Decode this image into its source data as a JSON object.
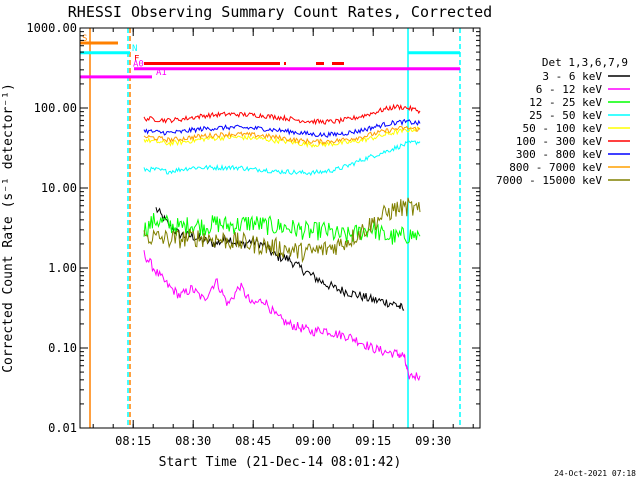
{
  "chart_data": {
    "type": "line",
    "title": "RHESSI Observing Summary Count Rates, Corrected",
    "xlabel": "Start Time (21-Dec-14 08:01:42)",
    "ylabel": "Corrected Count Rate (s⁻¹ detector⁻¹)",
    "y_scale": "log",
    "xlim_minutes": [
      0,
      100
    ],
    "ylim": [
      0.01,
      1000
    ],
    "x_ticks": [
      {
        "label": "08:15",
        "min": 13.3
      },
      {
        "label": "08:30",
        "min": 28.3
      },
      {
        "label": "08:45",
        "min": 43.3
      },
      {
        "label": "09:00",
        "min": 58.3
      },
      {
        "label": "09:15",
        "min": 73.3
      },
      {
        "label": "09:30",
        "min": 88.3
      }
    ],
    "y_ticks": [
      {
        "label": "1000.00",
        "v": 1000
      },
      {
        "label": "100.00",
        "v": 100
      },
      {
        "label": "10.00",
        "v": 10
      },
      {
        "label": "1.00",
        "v": 1
      },
      {
        "label": "0.10",
        "v": 0.1
      },
      {
        "label": "0.01",
        "v": 0.01
      }
    ],
    "legend_title": "Det 1,3,6,7,9",
    "legend_placement": "right",
    "series": [
      {
        "name": "3 - 6 keV",
        "color": "#000000",
        "x": [
          19,
          22,
          25,
          28,
          31,
          34,
          37,
          40,
          43,
          46,
          49,
          52,
          55,
          58,
          61,
          64,
          67,
          70,
          73,
          76,
          79,
          81
        ],
        "y": [
          5.5,
          3.5,
          2.6,
          2.5,
          2.2,
          2.0,
          2.4,
          1.9,
          2.2,
          1.9,
          1.4,
          1.3,
          1.0,
          0.8,
          0.65,
          0.55,
          0.5,
          0.45,
          0.4,
          0.38,
          0.35,
          0.3
        ]
      },
      {
        "name": "6 - 12 keV",
        "color": "#ff00ff",
        "x": [
          16,
          19,
          22,
          25,
          28,
          31,
          34,
          37,
          40,
          43,
          46,
          49,
          52,
          55,
          58,
          61,
          64,
          67,
          70,
          73,
          76,
          79,
          81,
          82,
          85
        ],
        "y": [
          1.5,
          0.9,
          0.6,
          0.45,
          0.55,
          0.4,
          0.7,
          0.35,
          0.6,
          0.35,
          0.4,
          0.25,
          0.2,
          0.18,
          0.16,
          0.17,
          0.15,
          0.14,
          0.12,
          0.1,
          0.09,
          0.085,
          0.08,
          0.045,
          0.045
        ]
      },
      {
        "name": "12 - 25 keV",
        "color": "#00ff00",
        "x": [
          16,
          19,
          22,
          25,
          28,
          31,
          34,
          37,
          40,
          43,
          46,
          49,
          52,
          55,
          58,
          61,
          64,
          67,
          70,
          73,
          76,
          79,
          82,
          85
        ],
        "y": [
          3.0,
          4.0,
          3.5,
          3.2,
          3.5,
          3.3,
          3.6,
          3.4,
          3.5,
          3.7,
          3.4,
          3.3,
          3.2,
          3.0,
          2.8,
          3.0,
          2.6,
          2.5,
          2.8,
          3.2,
          2.5,
          2.4,
          2.6,
          2.5
        ]
      },
      {
        "name": "25 - 50 keV",
        "color": "#00ffff",
        "x": [
          16,
          19,
          22,
          25,
          28,
          31,
          34,
          37,
          40,
          43,
          46,
          49,
          52,
          55,
          58,
          61,
          64,
          67,
          70,
          73,
          76,
          79,
          82,
          85
        ],
        "y": [
          17,
          17,
          16,
          17,
          18,
          18,
          18,
          18,
          18,
          17,
          17,
          16,
          16,
          15.5,
          15.5,
          16,
          17,
          19,
          22,
          25,
          28,
          32,
          36,
          38
        ]
      },
      {
        "name": "50 - 100 keV",
        "color": "#ffff00",
        "x": [
          16,
          19,
          22,
          25,
          28,
          31,
          34,
          37,
          40,
          43,
          46,
          49,
          52,
          55,
          58,
          61,
          64,
          67,
          70,
          73,
          76,
          79,
          82,
          85
        ],
        "y": [
          40,
          38,
          36,
          37,
          39,
          41,
          42,
          43,
          43,
          42,
          41,
          39,
          38,
          36,
          35,
          35,
          36,
          37,
          39,
          42,
          46,
          50,
          53,
          55
        ]
      },
      {
        "name": "100 - 300 keV",
        "color": "#ff0000",
        "x": [
          16,
          19,
          22,
          25,
          28,
          31,
          34,
          37,
          40,
          43,
          46,
          49,
          52,
          55,
          58,
          61,
          64,
          67,
          70,
          73,
          76,
          79,
          82,
          85
        ],
        "y": [
          74,
          72,
          70,
          72,
          76,
          80,
          82,
          84,
          83,
          82,
          80,
          77,
          74,
          70,
          68,
          67,
          68,
          72,
          78,
          86,
          96,
          104,
          100,
          92
        ]
      },
      {
        "name": "300 - 800 keV",
        "color": "#0000ff",
        "x": [
          16,
          19,
          22,
          25,
          28,
          31,
          34,
          37,
          40,
          43,
          46,
          49,
          52,
          55,
          58,
          61,
          64,
          67,
          70,
          73,
          76,
          79,
          82,
          85
        ],
        "y": [
          52,
          50,
          49,
          50,
          53,
          55,
          56,
          57,
          57,
          56,
          55,
          53,
          51,
          49,
          47,
          46,
          47,
          49,
          52,
          57,
          62,
          66,
          67,
          64
        ]
      },
      {
        "name": "800 - 7000 keV",
        "color": "#ffa000",
        "x": [
          16,
          19,
          22,
          25,
          28,
          31,
          34,
          37,
          40,
          43,
          46,
          49,
          52,
          55,
          58,
          61,
          64,
          67,
          70,
          73,
          76,
          79,
          82,
          85
        ],
        "y": [
          44,
          42,
          40,
          41,
          43,
          45,
          46,
          47,
          47,
          46,
          45,
          43,
          41,
          39,
          38,
          38,
          39,
          41,
          43,
          47,
          51,
          55,
          56,
          54
        ]
      },
      {
        "name": "7000 - 15000 keV",
        "color": "#808000",
        "x": [
          16,
          19,
          22,
          25,
          28,
          31,
          34,
          37,
          40,
          43,
          46,
          49,
          52,
          55,
          58,
          61,
          64,
          67,
          70,
          73,
          76,
          79,
          82,
          85
        ],
        "y": [
          2.5,
          2.4,
          2.3,
          2.3,
          2.4,
          2.4,
          2.3,
          2.2,
          2.1,
          2.0,
          1.9,
          1.8,
          1.7,
          1.6,
          1.6,
          1.7,
          1.9,
          2.2,
          2.8,
          3.6,
          4.6,
          5.5,
          5.8,
          5.0
        ]
      }
    ],
    "annotations": [
      {
        "text": "S",
        "color": "#ff8000",
        "x_min": 0,
        "x_max": 9.5,
        "y": 650
      },
      {
        "text": "N",
        "color": "#00ffff",
        "x_min": 0,
        "x_max": 12.5,
        "y": 490,
        "x2_min": 82,
        "x2_max": 95
      },
      {
        "text": "F",
        "color": "#ff0000",
        "x_min": 16,
        "x_max": 50,
        "y": 360,
        "extra": [
          [
            51,
            51.5
          ],
          [
            59,
            61
          ],
          [
            63,
            66
          ]
        ]
      },
      {
        "text": "A0",
        "color": "#ff00ff",
        "x_min": 13.5,
        "x_max": 95,
        "y": 310
      },
      {
        "text": "A1",
        "color": "#ff00ff",
        "x_min": 0,
        "x_max": 18,
        "y": 245
      }
    ],
    "vertical_lines": [
      {
        "color": "#ff8000",
        "x_min": 2.5,
        "style": "solid"
      },
      {
        "color": "#00ffff",
        "x_min": 12,
        "style": "dashed"
      },
      {
        "color": "#ff8000",
        "x_min": 12.5,
        "style": "dashed"
      },
      {
        "color": "#00ffff",
        "x_min": 82,
        "style": "solid"
      },
      {
        "color": "#00ffff",
        "x_min": 95,
        "style": "dashed"
      }
    ],
    "footer": "24-Oct-2021 07:18"
  }
}
